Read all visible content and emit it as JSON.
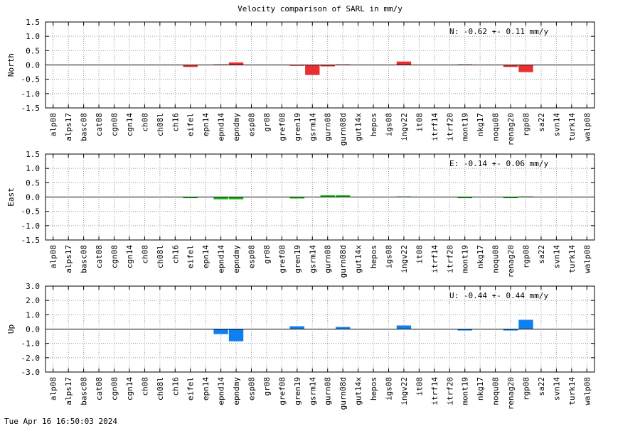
{
  "title": "Velocity comparison of SARL in mm/y",
  "timestamp": "Tue Apr 16 16:50:03 2024",
  "chart_data": [
    {
      "type": "bar",
      "ylabel": "North",
      "ylim": [
        -1.5,
        1.5
      ],
      "yticks": [
        1.5,
        1.0,
        0.5,
        0.0,
        -0.5,
        -1.0,
        -1.5
      ],
      "ytick_labels": [
        "1.5",
        "1.0",
        "0.5",
        "0.0",
        "-0.5",
        "-1.0",
        "-1.5"
      ],
      "color": "#e83030",
      "annotation": "N:  -0.62 +-  0.11 mm/y",
      "grid": true,
      "categories": [
        "alp08",
        "alps17",
        "basc08",
        "cat08",
        "cgn08",
        "cgn14",
        "ch08",
        "ch08l",
        "ch16",
        "eifel",
        "epn14",
        "epnd14",
        "epndmy",
        "esp08",
        "gr08",
        "gref08",
        "gren19",
        "gsrm14",
        "gurn08",
        "gurn08d",
        "gut14x",
        "hepos",
        "igs08",
        "ingv22",
        "it08",
        "itrf14",
        "itrf20",
        "mont19",
        "nkg17",
        "noqu08",
        "renag20",
        "rgp08",
        "sa22",
        "svn14",
        "turk14",
        "walp08"
      ],
      "values": [
        0,
        0,
        0,
        0,
        0,
        0,
        0,
        0,
        0,
        -0.07,
        0,
        0.02,
        0.09,
        0,
        0,
        0,
        -0.03,
        -0.35,
        -0.05,
        0.02,
        0,
        0,
        0,
        0.12,
        0,
        0,
        0,
        0.02,
        0,
        0,
        -0.07,
        -0.25,
        0,
        0,
        0,
        0
      ]
    },
    {
      "type": "bar",
      "ylabel": "East",
      "ylim": [
        -1.5,
        1.5
      ],
      "yticks": [
        1.5,
        1.0,
        0.5,
        0.0,
        -0.5,
        -1.0,
        -1.5
      ],
      "ytick_labels": [
        "1.5",
        "1.0",
        "0.5",
        "0.0",
        "-0.5",
        "-1.0",
        "-1.5"
      ],
      "color": "#10b810",
      "annotation": "E:  -0.14 +-  0.06 mm/y",
      "grid": true,
      "categories": [
        "alp08",
        "alps17",
        "basc08",
        "cat08",
        "cgn08",
        "cgn14",
        "ch08",
        "ch08l",
        "ch16",
        "eifel",
        "epn14",
        "epnd14",
        "epndmy",
        "esp08",
        "gr08",
        "gref08",
        "gren19",
        "gsrm14",
        "gurn08",
        "gurn08d",
        "gut14x",
        "hepos",
        "igs08",
        "ingv22",
        "it08",
        "itrf14",
        "itrf20",
        "mont19",
        "nkg17",
        "noqu08",
        "renag20",
        "rgp08",
        "sa22",
        "svn14",
        "turk14",
        "walp08"
      ],
      "values": [
        0,
        0,
        0,
        0,
        0,
        0,
        0,
        0,
        0,
        -0.04,
        0,
        -0.08,
        -0.08,
        0,
        0,
        0,
        -0.05,
        0,
        0.06,
        0.06,
        0,
        0,
        0,
        0.02,
        0,
        0,
        0,
        -0.04,
        0,
        0,
        -0.04,
        0.02,
        0,
        0,
        0,
        0
      ]
    },
    {
      "type": "bar",
      "ylabel": "Up",
      "ylim": [
        -3.0,
        3.0
      ],
      "yticks": [
        3.0,
        2.0,
        1.0,
        0.0,
        -1.0,
        -2.0,
        -3.0
      ],
      "ytick_labels": [
        "3.0",
        "2.0",
        "1.0",
        "0.0",
        "-1.0",
        "-2.0",
        "-3.0"
      ],
      "color": "#1080f0",
      "annotation": "U:  -0.44 +-  0.44 mm/y",
      "grid": true,
      "categories": [
        "alp08",
        "alps17",
        "basc08",
        "cat08",
        "cgn08",
        "cgn14",
        "ch08",
        "ch08l",
        "ch16",
        "eifel",
        "epn14",
        "epnd14",
        "epndmy",
        "esp08",
        "gr08",
        "gref08",
        "gren19",
        "gsrm14",
        "gurn08",
        "gurn08d",
        "gut14x",
        "hepos",
        "igs08",
        "ingv22",
        "it08",
        "itrf14",
        "itrf20",
        "mont19",
        "nkg17",
        "noqu08",
        "renag20",
        "rgp08",
        "sa22",
        "svn14",
        "turk14",
        "walp08"
      ],
      "values": [
        0,
        0,
        0,
        0,
        0,
        0,
        0,
        0,
        0,
        0,
        0,
        -0.35,
        -0.85,
        0,
        0,
        0,
        0.2,
        0,
        0,
        0.15,
        0,
        0,
        0,
        0.25,
        0,
        0,
        0,
        -0.1,
        0,
        0,
        -0.1,
        0.65,
        0,
        0,
        0,
        0
      ]
    }
  ]
}
